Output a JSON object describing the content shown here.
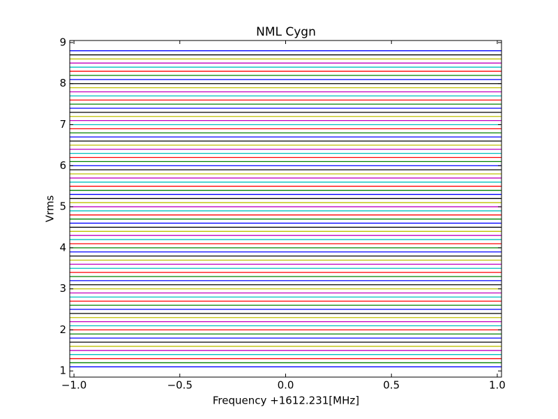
{
  "chart_data": {
    "type": "line",
    "title": "NML Cygn",
    "x_label": "Frequency +1612.231[MHz]",
    "y_label": "Vrms",
    "x": [
      -1.02,
      1.02
    ],
    "xlim": [
      -1.02,
      1.02
    ],
    "ylim": [
      0.85,
      9.05
    ],
    "xticks": [
      {
        "value": -1,
        "label": "−1.0"
      },
      {
        "value": -0.5,
        "label": "−0.5"
      },
      {
        "value": 0,
        "label": "0.0"
      },
      0.5,
      {
        "value": 1,
        "label": "1.0"
      }
    ],
    "yticks": [
      1,
      2,
      3,
      4,
      5,
      6,
      7,
      8,
      9
    ],
    "grid": false,
    "series": [
      {
        "color": "#0000ff",
        "values": [
          1.1,
          1.1
        ]
      },
      {
        "color": "#008000",
        "values": [
          1.2,
          1.2
        ]
      },
      {
        "color": "#ff0000",
        "values": [
          1.3,
          1.3
        ]
      },
      {
        "color": "#00bfbf",
        "values": [
          1.4,
          1.4
        ]
      },
      {
        "color": "#bf00bf",
        "values": [
          1.5,
          1.5
        ]
      },
      {
        "color": "#bfbf00",
        "values": [
          1.6,
          1.6
        ]
      },
      {
        "color": "#000000",
        "values": [
          1.7,
          1.7
        ]
      },
      {
        "color": "#0000ff",
        "values": [
          1.8,
          1.8
        ]
      },
      {
        "color": "#008000",
        "values": [
          1.9,
          1.9
        ]
      },
      {
        "color": "#ff0000",
        "values": [
          2.0,
          2.0
        ]
      },
      {
        "color": "#00bfbf",
        "values": [
          2.1,
          2.1
        ]
      },
      {
        "color": "#bf00bf",
        "values": [
          2.2,
          2.2
        ]
      },
      {
        "color": "#bfbf00",
        "values": [
          2.3,
          2.3
        ]
      },
      {
        "color": "#000000",
        "values": [
          2.4,
          2.4
        ]
      },
      {
        "color": "#0000ff",
        "values": [
          2.5,
          2.5
        ]
      },
      {
        "color": "#008000",
        "values": [
          2.6,
          2.6
        ]
      },
      {
        "color": "#ff0000",
        "values": [
          2.7,
          2.7
        ]
      },
      {
        "color": "#00bfbf",
        "values": [
          2.8,
          2.8
        ]
      },
      {
        "color": "#bf00bf",
        "values": [
          2.9,
          2.9
        ]
      },
      {
        "color": "#bfbf00",
        "values": [
          3.0,
          3.0
        ]
      },
      {
        "color": "#000000",
        "values": [
          3.1,
          3.1
        ]
      },
      {
        "color": "#0000ff",
        "values": [
          3.2,
          3.2
        ]
      },
      {
        "color": "#008000",
        "values": [
          3.3,
          3.3
        ]
      },
      {
        "color": "#ff0000",
        "values": [
          3.4,
          3.4
        ]
      },
      {
        "color": "#00bfbf",
        "values": [
          3.5,
          3.5
        ]
      },
      {
        "color": "#bf00bf",
        "values": [
          3.6,
          3.6
        ]
      },
      {
        "color": "#bfbf00",
        "values": [
          3.7,
          3.7
        ]
      },
      {
        "color": "#000000",
        "values": [
          3.8,
          3.8
        ]
      },
      {
        "color": "#0000ff",
        "values": [
          3.9,
          3.9
        ]
      },
      {
        "color": "#008000",
        "values": [
          4.0,
          4.0
        ]
      },
      {
        "color": "#ff0000",
        "values": [
          4.1,
          4.1
        ]
      },
      {
        "color": "#00bfbf",
        "values": [
          4.2,
          4.2
        ]
      },
      {
        "color": "#bf00bf",
        "values": [
          4.3,
          4.3
        ]
      },
      {
        "color": "#bfbf00",
        "values": [
          4.4,
          4.4
        ]
      },
      {
        "color": "#000000",
        "values": [
          4.5,
          4.5
        ]
      },
      {
        "color": "#0000ff",
        "values": [
          4.6,
          4.6
        ]
      },
      {
        "color": "#008000",
        "values": [
          4.7,
          4.7
        ]
      },
      {
        "color": "#ff0000",
        "values": [
          4.8,
          4.8
        ]
      },
      {
        "color": "#00bfbf",
        "values": [
          4.9,
          4.9
        ]
      },
      {
        "color": "#bf00bf",
        "values": [
          5.0,
          5.0
        ]
      },
      {
        "color": "#bfbf00",
        "values": [
          5.1,
          5.1
        ]
      },
      {
        "color": "#000000",
        "values": [
          5.2,
          5.2
        ]
      },
      {
        "color": "#0000ff",
        "values": [
          5.3,
          5.3
        ]
      },
      {
        "color": "#008000",
        "values": [
          5.4,
          5.4
        ]
      },
      {
        "color": "#ff0000",
        "values": [
          5.5,
          5.5
        ]
      },
      {
        "color": "#00bfbf",
        "values": [
          5.6,
          5.6
        ]
      },
      {
        "color": "#bf00bf",
        "values": [
          5.7,
          5.7
        ]
      },
      {
        "color": "#bfbf00",
        "values": [
          5.8,
          5.8
        ]
      },
      {
        "color": "#000000",
        "values": [
          5.9,
          5.9
        ]
      },
      {
        "color": "#0000ff",
        "values": [
          6.0,
          6.0
        ]
      },
      {
        "color": "#008000",
        "values": [
          6.1,
          6.1
        ]
      },
      {
        "color": "#ff0000",
        "values": [
          6.2,
          6.2
        ]
      },
      {
        "color": "#00bfbf",
        "values": [
          6.3,
          6.3
        ]
      },
      {
        "color": "#bf00bf",
        "values": [
          6.4,
          6.4
        ]
      },
      {
        "color": "#bfbf00",
        "values": [
          6.5,
          6.5
        ]
      },
      {
        "color": "#000000",
        "values": [
          6.6,
          6.6
        ]
      },
      {
        "color": "#0000ff",
        "values": [
          6.7,
          6.7
        ]
      },
      {
        "color": "#008000",
        "values": [
          6.8,
          6.8
        ]
      },
      {
        "color": "#ff0000",
        "values": [
          6.9,
          6.9
        ]
      },
      {
        "color": "#00bfbf",
        "values": [
          7.0,
          7.0
        ]
      },
      {
        "color": "#bf00bf",
        "values": [
          7.1,
          7.1
        ]
      },
      {
        "color": "#bfbf00",
        "values": [
          7.2,
          7.2
        ]
      },
      {
        "color": "#000000",
        "values": [
          7.3,
          7.3
        ]
      },
      {
        "color": "#0000ff",
        "values": [
          7.4,
          7.4
        ]
      },
      {
        "color": "#008000",
        "values": [
          7.5,
          7.5
        ]
      },
      {
        "color": "#ff0000",
        "values": [
          7.6,
          7.6
        ]
      },
      {
        "color": "#00bfbf",
        "values": [
          7.7,
          7.7
        ]
      },
      {
        "color": "#bf00bf",
        "values": [
          7.8,
          7.8
        ]
      },
      {
        "color": "#bfbf00",
        "values": [
          7.9,
          7.9
        ]
      },
      {
        "color": "#000000",
        "values": [
          8.0,
          8.0
        ]
      },
      {
        "color": "#0000ff",
        "values": [
          8.1,
          8.1
        ]
      },
      {
        "color": "#008000",
        "values": [
          8.2,
          8.2
        ]
      },
      {
        "color": "#ff0000",
        "values": [
          8.3,
          8.3
        ]
      },
      {
        "color": "#00bfbf",
        "values": [
          8.4,
          8.4
        ]
      },
      {
        "color": "#bf00bf",
        "values": [
          8.5,
          8.5
        ]
      },
      {
        "color": "#bfbf00",
        "values": [
          8.6,
          8.6
        ]
      },
      {
        "color": "#000000",
        "values": [
          8.7,
          8.7
        ]
      },
      {
        "color": "#0000ff",
        "values": [
          8.8,
          8.8
        ]
      }
    ]
  }
}
